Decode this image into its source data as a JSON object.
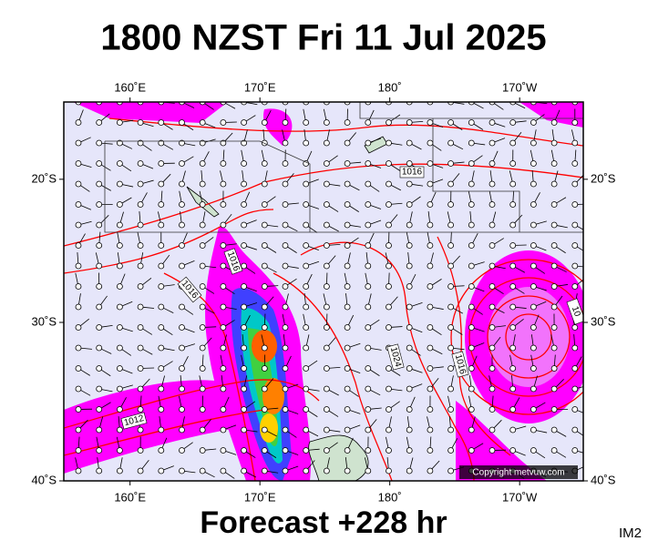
{
  "map": {
    "title": "1800 NZST Fri 11 Jul 2025",
    "footer": "Forecast +228 hr",
    "corner_label": "IM2",
    "copyright": "Copyright metvuw.com",
    "lonlim": [
      154.9,
      194.9
    ],
    "latlim": [
      -14.3,
      -40
    ],
    "lon_ticks": [
      {
        "value": 160,
        "label": "160˚E"
      },
      {
        "value": 170,
        "label": "170˚E"
      },
      {
        "value": 180,
        "label": "180˚"
      },
      {
        "value": 190,
        "label": "170˚W"
      }
    ],
    "lat_ticks": [
      {
        "value": -20,
        "label": "20˚S"
      },
      {
        "value": -30,
        "label": "30˚S"
      },
      {
        "value": -40,
        "label": "40˚S"
      }
    ],
    "isobar_labels": [
      "1016",
      "1016",
      "1016",
      "1012",
      "1024",
      "1016",
      "10"
    ]
  }
}
